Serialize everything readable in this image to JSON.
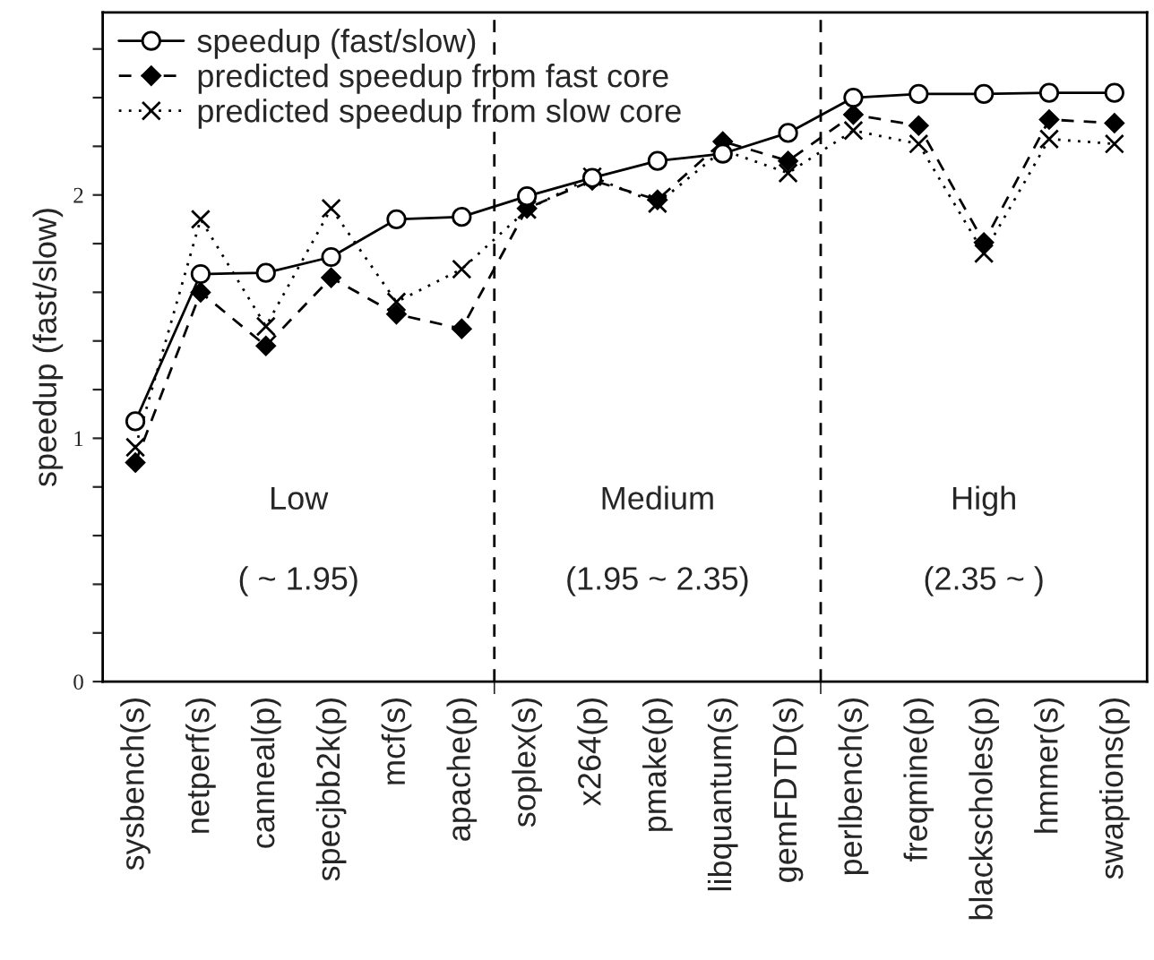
{
  "chart_data": {
    "type": "line",
    "ylabel": "speedup (fast/slow)",
    "categories": [
      "sysbench(s)",
      "netperf(s)",
      "canneal(p)",
      "specjbb2k(p)",
      "mcf(s)",
      "apache(p)",
      "soplex(s)",
      "x264(p)",
      "pmake(p)",
      "libquantum(s)",
      "gemFDTD(s)",
      "perlbench(s)",
      "freqmine(p)",
      "blackscholes(p)",
      "hmmer(s)",
      "swaptions(p)"
    ],
    "series": [
      {
        "name": "speedup (fast/slow)",
        "color": "#000000",
        "marker": "circle",
        "line_style": "solid",
        "values": [
          1.07,
          1.675,
          1.68,
          1.745,
          1.9,
          1.91,
          1.995,
          2.07,
          2.14,
          2.17,
          2.255,
          2.4,
          2.415,
          2.415,
          2.42,
          2.42
        ]
      },
      {
        "name": "predicted speedup from fast core",
        "color": "#000000",
        "marker": "diamond",
        "line_style": "dashed",
        "values": [
          0.9,
          1.6,
          1.38,
          1.66,
          1.51,
          1.45,
          1.945,
          2.06,
          1.98,
          2.22,
          2.14,
          2.33,
          2.285,
          1.805,
          2.31,
          2.295
        ]
      },
      {
        "name": "predicted speedup from slow core",
        "color": "#000000",
        "marker": "cross",
        "line_style": "dotted",
        "values": [
          0.963,
          1.9,
          1.46,
          1.945,
          1.56,
          1.695,
          1.94,
          2.075,
          1.965,
          2.185,
          2.09,
          2.265,
          2.21,
          1.76,
          2.23,
          2.21
        ]
      }
    ],
    "ylim": [
      0,
      2.75
    ],
    "yticks": [
      0,
      {
        "value": 0.2,
        "label": null
      },
      {
        "value": 0.4,
        "label": null
      },
      {
        "value": 0.6,
        "label": null
      },
      {
        "value": 0.8,
        "label": null
      },
      1,
      {
        "value": 1.2,
        "label": null
      },
      {
        "value": 1.4,
        "label": null
      },
      {
        "value": 1.6,
        "label": null
      },
      {
        "value": 1.8,
        "label": null
      },
      2,
      {
        "value": 2.2,
        "label": null
      },
      {
        "value": 2.4,
        "label": null
      },
      {
        "value": 2.6,
        "label": null
      }
    ],
    "annotations": [
      "Low",
      "( ~ 1.95)",
      "Medium",
      "(1.95 ~ 2.35)",
      "High",
      "(2.35 ~ )"
    ],
    "legend": "top left",
    "grid": false
  }
}
